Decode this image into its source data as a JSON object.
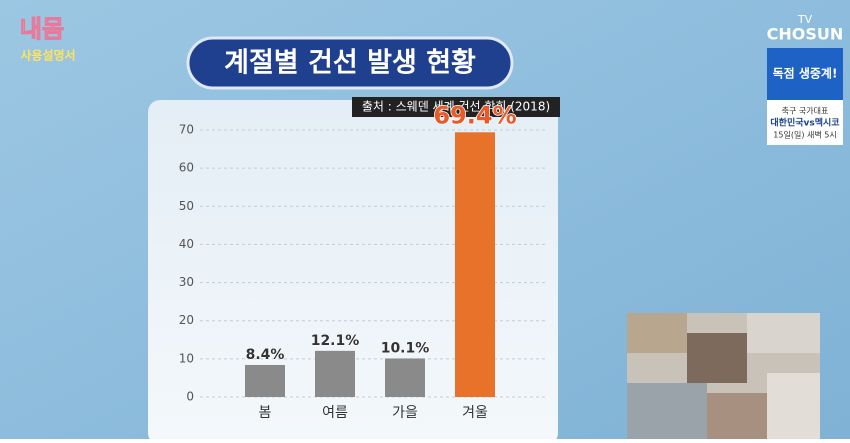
{
  "chart_data": {
    "type": "bar",
    "title": "계절별 건선 발생 현황",
    "source": "출처 : 스웨덴 세계 건선 학회 (2018)",
    "categories": [
      "봄",
      "여름",
      "가을",
      "겨울"
    ],
    "values": [
      8.4,
      12.1,
      10.1,
      69.4
    ],
    "value_labels": [
      "8.4%",
      "12.1%",
      "10.1%",
      "69.4%"
    ],
    "colors": [
      "#8a8a8a",
      "#8a8a8a",
      "#8a8a8a",
      "#e8722a"
    ],
    "ylim": [
      0,
      70
    ],
    "yticks": [
      0,
      10,
      20,
      30,
      40,
      50,
      60,
      70
    ],
    "grid": true
  },
  "overlay": {
    "show_logo": [
      "내몸",
      "사용설명서"
    ],
    "channel": [
      "TV",
      "CHOSUN"
    ],
    "promo": {
      "headline": "독점 생중계!",
      "lines": [
        "축구 국가대표",
        "대한민국vs멕시코",
        "15일(일) 새벽 5시"
      ]
    }
  }
}
